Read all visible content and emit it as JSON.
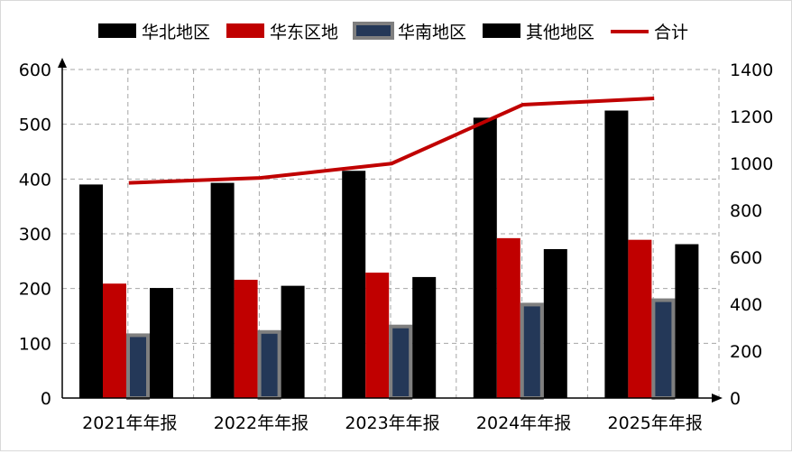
{
  "chart_data": {
    "type": "bar",
    "categories": [
      "2021年年报",
      "2022年年报",
      "2023年年报",
      "2024年年报",
      "2025年年报"
    ],
    "series": [
      {
        "name": "华北地区",
        "type": "bar",
        "axis": "left",
        "color": "#000000",
        "values": [
          390,
          393,
          415,
          512,
          525
        ]
      },
      {
        "name": "华东区地",
        "type": "bar",
        "axis": "left",
        "color": "#c00000",
        "values": [
          209,
          216,
          229,
          292,
          289
        ]
      },
      {
        "name": "华南地区",
        "type": "bar",
        "axis": "left",
        "color": "#243858",
        "border": "#7f7f7f",
        "values": [
          118,
          124,
          134,
          174,
          182
        ]
      },
      {
        "name": "其他地区",
        "type": "bar",
        "axis": "left",
        "color": "#000000",
        "values": [
          201,
          205,
          221,
          272,
          281
        ]
      },
      {
        "name": "合计",
        "type": "line",
        "axis": "right",
        "color": "#c00000",
        "values": [
          917,
          938,
          999,
          1250,
          1277
        ]
      }
    ],
    "y_left": {
      "ylim": [
        0,
        600
      ],
      "ticks": [
        "0",
        "100",
        "200",
        "300",
        "400",
        "500",
        "600"
      ]
    },
    "y_right": {
      "ylim": [
        0,
        1400
      ],
      "ticks": [
        "0",
        "200",
        "400",
        "600",
        "800",
        "1000",
        "1200",
        "1400"
      ]
    },
    "grid": true,
    "grid_style": "dashed",
    "legend_position": "top"
  }
}
